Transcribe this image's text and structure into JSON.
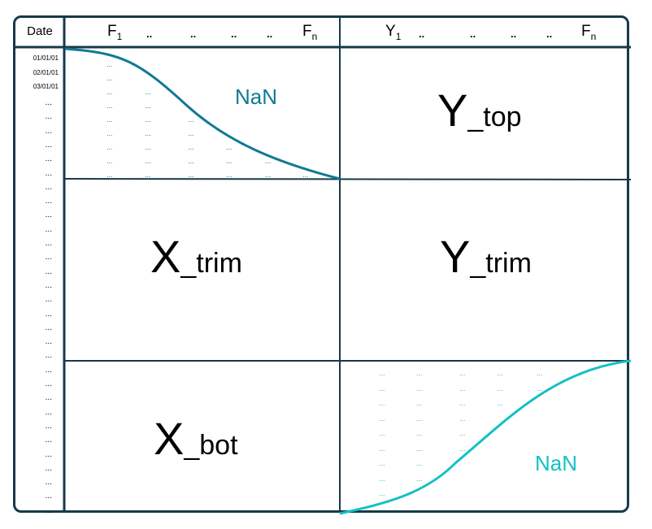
{
  "header": {
    "date_label": "Date",
    "x_first": "F",
    "x_first_sub": "1",
    "x_last": "F",
    "x_last_sub": "n",
    "y_first": "Y",
    "y_first_sub": "1",
    "y_last": "F",
    "y_last_sub": "n",
    "ellipsis": ".."
  },
  "dates": [
    "01/01/01",
    "02/01/01",
    "03/01/01"
  ],
  "ellipsis_row": "...",
  "blocks": {
    "y_top": {
      "main": "Y",
      "sub": "_top"
    },
    "x_trim": {
      "main": "X",
      "sub": "_trim"
    },
    "y_trim": {
      "main": "Y",
      "sub": "_trim"
    },
    "x_bot": {
      "main": "X",
      "sub": "_bot"
    }
  },
  "nan_top": "NaN",
  "nan_bottom": "NaN",
  "colors": {
    "frame": "#17394a",
    "curve_top": "#0f7a93",
    "curve_bottom": "#14c0c4",
    "dots_top": "#0f7a93",
    "dots_bottom": "#14c0c4"
  }
}
